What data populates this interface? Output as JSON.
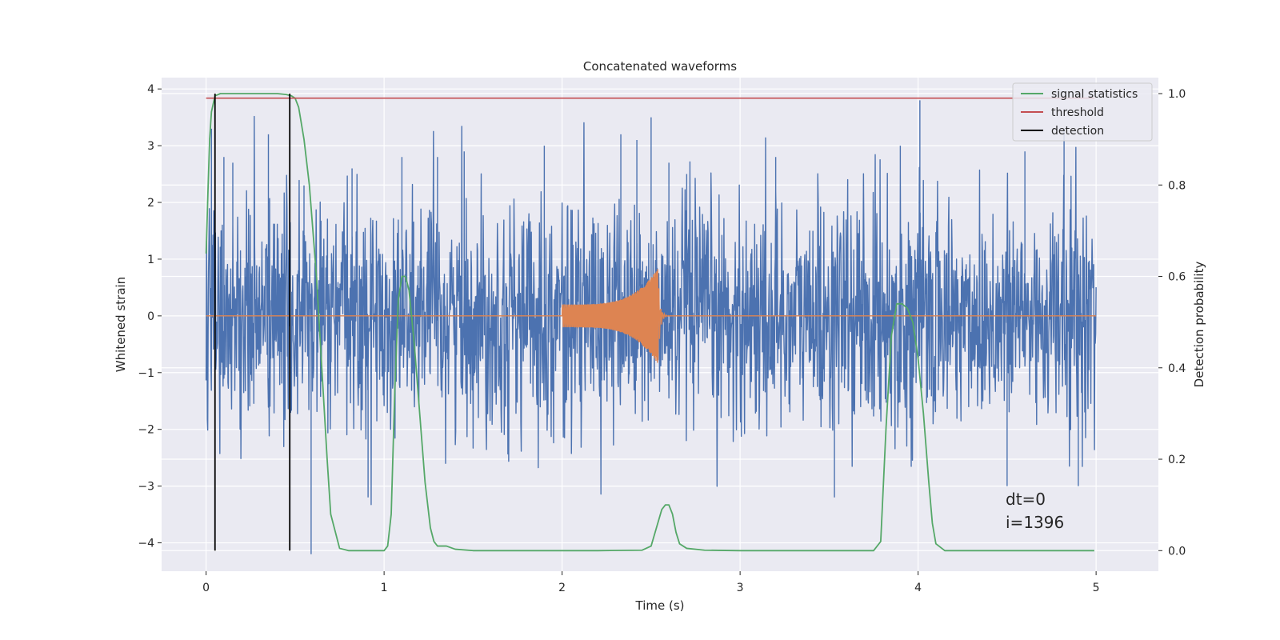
{
  "chart_data": {
    "type": "line",
    "title": "Concatenated waveforms",
    "xlabel": "Time (s)",
    "ylabel": "Whitened strain",
    "y2label": "Detection probability",
    "xlim": [
      -0.25,
      5.35
    ],
    "ylim": [
      -4.5,
      4.2
    ],
    "y2lim": [
      -0.045,
      1.035
    ],
    "x_ticks": [
      0,
      1,
      2,
      3,
      4,
      5
    ],
    "y_ticks": [
      -4,
      -3,
      -2,
      -1,
      0,
      1,
      2,
      3,
      4
    ],
    "y2_ticks": [
      0.0,
      0.2,
      0.4,
      0.6,
      0.8,
      1.0
    ],
    "x_tick_labels": [
      "0",
      "1",
      "2",
      "3",
      "4",
      "5"
    ],
    "y_tick_labels": [
      "−4",
      "−3",
      "−2",
      "−1",
      "0",
      "1",
      "2",
      "3",
      "4"
    ],
    "y2_tick_labels": [
      "0.0",
      "0.2",
      "0.4",
      "0.6",
      "0.8",
      "1.0"
    ],
    "grid": true,
    "legend_position": "top-right",
    "colors": {
      "background": "#eaeaf2",
      "strain": "#4c72b0",
      "waveform": "#dd8452",
      "signal_statistics": "#55a868",
      "threshold": "#c44e52",
      "detection": "#000000"
    },
    "series": [
      {
        "kind": "strain_noise",
        "axis": "left",
        "x_range": [
          0,
          5
        ],
        "typical_amplitude": 1.0,
        "max_amplitude": 3.8,
        "spikes": [
          [
            0.03,
            3.3
          ],
          [
            0.05,
            3.0
          ],
          [
            0.1,
            2.8
          ],
          [
            0.15,
            2.7
          ],
          [
            0.35,
            3.2
          ],
          [
            0.55,
            2.3
          ],
          [
            0.59,
            -4.2
          ],
          [
            0.82,
            2.6
          ],
          [
            0.91,
            -3.2
          ],
          [
            1.1,
            2.8
          ],
          [
            1.3,
            2.8
          ],
          [
            1.45,
            2.9
          ],
          [
            1.9,
            3.0
          ],
          [
            2.33,
            3.2
          ],
          [
            2.42,
            3.1
          ],
          [
            2.5,
            3.5
          ],
          [
            2.6,
            2.7
          ],
          [
            2.7,
            2.5
          ],
          [
            3.2,
            2.8
          ],
          [
            3.53,
            -3.2
          ],
          [
            3.9,
            3.0
          ],
          [
            4.01,
            3.8
          ],
          [
            4.5,
            -3.0
          ],
          [
            4.6,
            2.9
          ],
          [
            4.82,
            3.3
          ],
          [
            4.9,
            -3.0
          ]
        ]
      },
      {
        "kind": "chirp_waveform",
        "axis": "left",
        "x_start": 2.0,
        "x_merger": 2.54,
        "x_end": 3.0,
        "initial_amplitude": 0.2,
        "peak_amplitude": 0.85
      },
      {
        "name": "signal statistics",
        "axis": "right",
        "x": [
          0,
          0.01,
          0.02,
          0.03,
          0.05,
          0.08,
          0.12,
          0.2,
          0.3,
          0.4,
          0.45,
          0.48,
          0.5,
          0.52,
          0.55,
          0.58,
          0.62,
          0.65,
          0.68,
          0.7,
          0.75,
          0.8,
          0.9,
          1.0,
          1.02,
          1.04,
          1.06,
          1.08,
          1.1,
          1.12,
          1.14,
          1.17,
          1.2,
          1.23,
          1.26,
          1.28,
          1.3,
          1.35,
          1.4,
          1.5,
          1.8,
          2.2,
          2.45,
          2.5,
          2.53,
          2.56,
          2.58,
          2.6,
          2.62,
          2.64,
          2.66,
          2.7,
          2.8,
          3.0,
          3.5,
          3.75,
          3.79,
          3.82,
          3.85,
          3.88,
          3.91,
          3.94,
          3.97,
          4.0,
          4.03,
          4.06,
          4.08,
          4.1,
          4.15,
          4.3,
          4.99
        ],
        "values": [
          0.65,
          0.78,
          0.9,
          0.96,
          0.995,
          1.0,
          1.0,
          1.0,
          1.0,
          1.0,
          0.998,
          0.995,
          0.99,
          0.97,
          0.9,
          0.8,
          0.6,
          0.4,
          0.2,
          0.08,
          0.005,
          0.0,
          0.0,
          0.0,
          0.01,
          0.08,
          0.35,
          0.55,
          0.6,
          0.6,
          0.57,
          0.45,
          0.3,
          0.15,
          0.05,
          0.02,
          0.01,
          0.01,
          0.003,
          0.0,
          0.0,
          0.0,
          0.001,
          0.01,
          0.05,
          0.09,
          0.1,
          0.1,
          0.08,
          0.04,
          0.015,
          0.005,
          0.001,
          0.0,
          0.0,
          0.0,
          0.02,
          0.27,
          0.47,
          0.54,
          0.54,
          0.53,
          0.5,
          0.42,
          0.3,
          0.15,
          0.06,
          0.015,
          0.0,
          0.0,
          0.0
        ]
      },
      {
        "name": "threshold",
        "axis": "right",
        "x": [
          0,
          4.99
        ],
        "values": [
          0.99,
          0.99
        ]
      },
      {
        "name": "detection",
        "axis": "right",
        "kind": "vertical_lines",
        "x": [
          0.05,
          0.47
        ],
        "y_from": 0.0,
        "y_to": 1.0
      }
    ],
    "annotations": [
      "dt=0",
      "i=1396"
    ]
  }
}
